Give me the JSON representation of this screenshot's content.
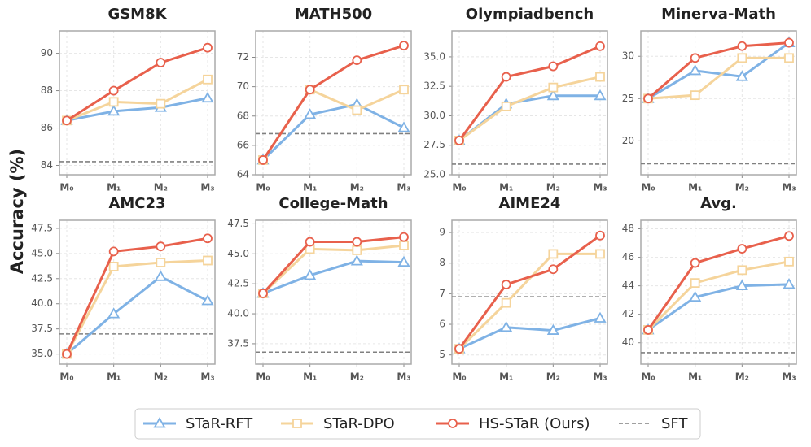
{
  "ylabel": "Accuracy (%)",
  "chart_data": [
    {
      "type": "line",
      "title": "GSM8K",
      "categories": [
        "M₀",
        "M₁",
        "M₂",
        "M₃"
      ],
      "ylim": [
        83.5,
        91.2
      ],
      "yticks": [
        84,
        86,
        88,
        90
      ],
      "grid": true,
      "series": [
        {
          "name": "STaR-RFT",
          "color": "#7fb2e5",
          "marker": "triangle",
          "values": [
            86.4,
            86.9,
            87.1,
            87.6
          ]
        },
        {
          "name": "STaR-DPO",
          "color": "#f5d49b",
          "marker": "square",
          "values": [
            86.4,
            87.4,
            87.3,
            88.6
          ]
        },
        {
          "name": "HS-STaR (Ours)",
          "color": "#e8604c",
          "marker": "circle",
          "values": [
            86.4,
            88.0,
            89.5,
            90.3
          ]
        }
      ],
      "baseline": {
        "name": "SFT",
        "color": "#808080",
        "value": 84.2
      }
    },
    {
      "type": "line",
      "title": "MATH500",
      "categories": [
        "M₀",
        "M₁",
        "M₂",
        "M₃"
      ],
      "ylim": [
        64,
        73.8
      ],
      "yticks": [
        64,
        66,
        68,
        70,
        72
      ],
      "grid": true,
      "series": [
        {
          "name": "STaR-RFT",
          "color": "#7fb2e5",
          "marker": "triangle",
          "values": [
            65.0,
            68.1,
            68.8,
            67.2
          ]
        },
        {
          "name": "STaR-DPO",
          "color": "#f5d49b",
          "marker": "square",
          "values": [
            65.0,
            69.8,
            68.4,
            69.8
          ]
        },
        {
          "name": "HS-STaR (Ours)",
          "color": "#e8604c",
          "marker": "circle",
          "values": [
            65.0,
            69.8,
            71.8,
            72.8
          ]
        }
      ],
      "baseline": {
        "name": "SFT",
        "color": "#808080",
        "value": 66.8
      }
    },
    {
      "type": "line",
      "title": "Olympiadbench",
      "categories": [
        "M₀",
        "M₁",
        "M₂",
        "M₃"
      ],
      "ylim": [
        25,
        37.2
      ],
      "yticks": [
        {
          "value": 25,
          "label": "25.0"
        },
        27.5,
        {
          "value": 30,
          "label": "30.0"
        },
        32.5,
        {
          "value": 35,
          "label": "35.0"
        }
      ],
      "grid": true,
      "series": [
        {
          "name": "STaR-RFT",
          "color": "#7fb2e5",
          "marker": "triangle",
          "values": [
            27.9,
            31.0,
            31.7,
            31.7
          ]
        },
        {
          "name": "STaR-DPO",
          "color": "#f5d49b",
          "marker": "square",
          "values": [
            27.9,
            30.8,
            32.4,
            33.3
          ]
        },
        {
          "name": "HS-STaR (Ours)",
          "color": "#e8604c",
          "marker": "circle",
          "values": [
            27.9,
            33.3,
            34.2,
            35.9
          ]
        }
      ],
      "baseline": {
        "name": "SFT",
        "color": "#808080",
        "value": 25.9
      }
    },
    {
      "type": "line",
      "title": "Minerva-Math",
      "categories": [
        "M₀",
        "M₁",
        "M₂",
        "M₃"
      ],
      "ylim": [
        16,
        33
      ],
      "yticks": [
        20,
        25,
        30
      ],
      "grid": true,
      "series": [
        {
          "name": "STaR-RFT",
          "color": "#7fb2e5",
          "marker": "triangle",
          "values": [
            25.0,
            28.3,
            27.6,
            31.6
          ]
        },
        {
          "name": "STaR-DPO",
          "color": "#f5d49b",
          "marker": "square",
          "values": [
            25.0,
            25.4,
            29.8,
            29.8
          ]
        },
        {
          "name": "HS-STaR (Ours)",
          "color": "#e8604c",
          "marker": "circle",
          "values": [
            25.0,
            29.8,
            31.2,
            31.6
          ]
        }
      ],
      "baseline": {
        "name": "SFT",
        "color": "#808080",
        "value": 17.3
      }
    },
    {
      "type": "line",
      "title": "AMC23",
      "categories": [
        "M₀",
        "M₁",
        "M₂",
        "M₃"
      ],
      "ylim": [
        34,
        48.3
      ],
      "yticks": [
        {
          "value": 35,
          "label": "35.0"
        },
        37.5,
        {
          "value": 40,
          "label": "40.0"
        },
        42.5,
        {
          "value": 45,
          "label": "45.0"
        },
        47.5
      ],
      "grid": true,
      "series": [
        {
          "name": "STaR-RFT",
          "color": "#7fb2e5",
          "marker": "triangle",
          "values": [
            35.0,
            39.0,
            42.7,
            40.3
          ]
        },
        {
          "name": "STaR-DPO",
          "color": "#f5d49b",
          "marker": "square",
          "values": [
            35.0,
            43.7,
            44.1,
            44.3
          ]
        },
        {
          "name": "HS-STaR (Ours)",
          "color": "#e8604c",
          "marker": "circle",
          "values": [
            35.0,
            45.2,
            45.7,
            46.5
          ]
        }
      ],
      "baseline": {
        "name": "SFT",
        "color": "#808080",
        "value": 37.0
      }
    },
    {
      "type": "line",
      "title": "College-Math",
      "categories": [
        "M₀",
        "M₁",
        "M₂",
        "M₃"
      ],
      "ylim": [
        35.8,
        47.8
      ],
      "yticks": [
        37.5,
        {
          "value": 40,
          "label": "40.0"
        },
        42.5,
        {
          "value": 45,
          "label": "45.0"
        },
        47.5
      ],
      "grid": true,
      "series": [
        {
          "name": "STaR-RFT",
          "color": "#7fb2e5",
          "marker": "triangle",
          "values": [
            41.7,
            43.2,
            44.4,
            44.3
          ]
        },
        {
          "name": "STaR-DPO",
          "color": "#f5d49b",
          "marker": "square",
          "values": [
            41.7,
            45.4,
            45.3,
            45.7
          ]
        },
        {
          "name": "HS-STaR (Ours)",
          "color": "#e8604c",
          "marker": "circle",
          "values": [
            41.7,
            46.0,
            46.0,
            46.4
          ]
        }
      ],
      "baseline": {
        "name": "SFT",
        "color": "#808080",
        "value": 36.8
      }
    },
    {
      "type": "line",
      "title": "AIME24",
      "categories": [
        "M₀",
        "M₁",
        "M₂",
        "M₃"
      ],
      "ylim": [
        4.7,
        9.4
      ],
      "yticks": [
        5,
        6,
        7,
        8,
        9
      ],
      "grid": true,
      "series": [
        {
          "name": "STaR-RFT",
          "color": "#7fb2e5",
          "marker": "triangle",
          "values": [
            5.2,
            5.9,
            5.8,
            6.2
          ]
        },
        {
          "name": "STaR-DPO",
          "color": "#f5d49b",
          "marker": "square",
          "values": [
            5.2,
            6.7,
            8.3,
            8.3
          ]
        },
        {
          "name": "HS-STaR (Ours)",
          "color": "#e8604c",
          "marker": "circle",
          "values": [
            5.2,
            7.3,
            7.8,
            8.9
          ]
        }
      ],
      "baseline": {
        "name": "SFT",
        "color": "#808080",
        "value": 6.9
      }
    },
    {
      "type": "line",
      "title": "Avg.",
      "categories": [
        "M₀",
        "M₁",
        "M₂",
        "M₃"
      ],
      "ylim": [
        38.5,
        48.6
      ],
      "yticks": [
        40,
        42,
        44,
        46,
        48
      ],
      "grid": true,
      "series": [
        {
          "name": "STaR-RFT",
          "color": "#7fb2e5",
          "marker": "triangle",
          "values": [
            40.9,
            43.2,
            44.0,
            44.1
          ]
        },
        {
          "name": "STaR-DPO",
          "color": "#f5d49b",
          "marker": "square",
          "values": [
            40.9,
            44.2,
            45.1,
            45.7
          ]
        },
        {
          "name": "HS-STaR (Ours)",
          "color": "#e8604c",
          "marker": "circle",
          "values": [
            40.9,
            45.6,
            46.6,
            47.5
          ]
        }
      ],
      "baseline": {
        "name": "SFT",
        "color": "#808080",
        "value": 39.3
      }
    }
  ]
}
